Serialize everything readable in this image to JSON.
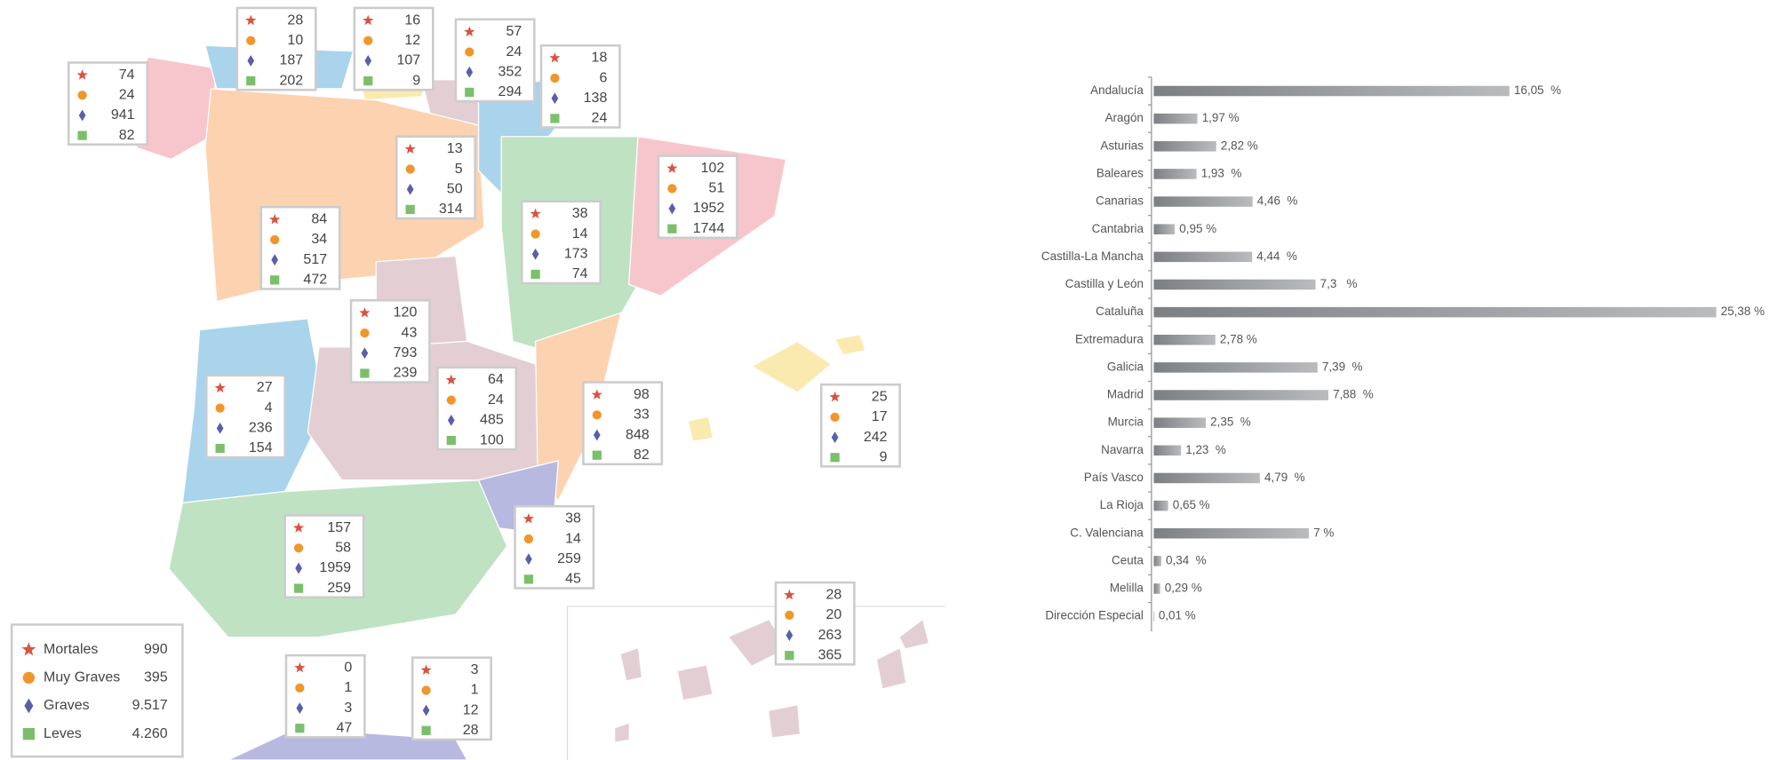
{
  "map": {
    "boxes": [
      [
        74,
        24,
        941,
        82
      ],
      [
        28,
        10,
        187,
        202
      ],
      [
        16,
        12,
        107,
        9
      ],
      [
        57,
        24,
        352,
        294
      ],
      [
        18,
        6,
        138,
        24
      ],
      [
        13,
        5,
        50,
        314
      ],
      [
        102,
        51,
        1952,
        1744
      ],
      [
        84,
        34,
        517,
        472
      ],
      [
        38,
        14,
        173,
        74
      ],
      [
        120,
        43,
        793,
        239
      ],
      [
        27,
        4,
        236,
        154
      ],
      [
        64,
        24,
        485,
        100
      ],
      [
        98,
        33,
        848,
        82
      ],
      [
        25,
        17,
        242,
        9
      ],
      [
        38,
        14,
        259,
        45
      ],
      [
        157,
        58,
        1959,
        259
      ],
      [
        28,
        20,
        263,
        365
      ],
      [
        0,
        1,
        3,
        47
      ],
      [
        3,
        1,
        12,
        28
      ]
    ],
    "legend": [
      {
        "label": "Mortales",
        "value": "990"
      },
      {
        "label": "Muy Graves",
        "value": "395"
      },
      {
        "label": "Graves",
        "value": "9.517"
      },
      {
        "label": "Leves",
        "value": "4.260"
      }
    ]
  },
  "chart_data": {
    "type": "bar",
    "orientation": "horizontal",
    "categories": [
      "Andalucía",
      "Aragón",
      "Asturias",
      "Baleares",
      "Canarias",
      "Cantabria",
      "Castilla-La Mancha",
      "Castilla y León",
      "Cataluña",
      "Extremadura",
      "Galicia",
      "Madrid",
      "Murcia",
      "Navarra",
      "País Vasco",
      "La Rioja",
      "C. Valenciana",
      "Ceuta",
      "Melilla",
      "Dirección Especial"
    ],
    "values": [
      16.05,
      1.97,
      2.82,
      1.93,
      4.46,
      0.95,
      4.44,
      7.3,
      25.38,
      2.78,
      7.39,
      7.88,
      2.35,
      1.23,
      4.79,
      0.65,
      7,
      0.34,
      0.29,
      0.01
    ],
    "value_labels": [
      "16,05  %",
      "1,97 %",
      "2,82 %",
      "1,93  %",
      "4,46  %",
      "0,95 %",
      "4,44  %",
      "7,3   %",
      "25,38 %",
      "2,78 %",
      "7,39  %",
      "7,88  %",
      "2,35  %",
      "1,23  %",
      "4,79  %",
      "0,65 %",
      "7 %",
      "0,34  %",
      "0,29 %",
      "0,01 %"
    ],
    "color": "#8a8d90"
  }
}
